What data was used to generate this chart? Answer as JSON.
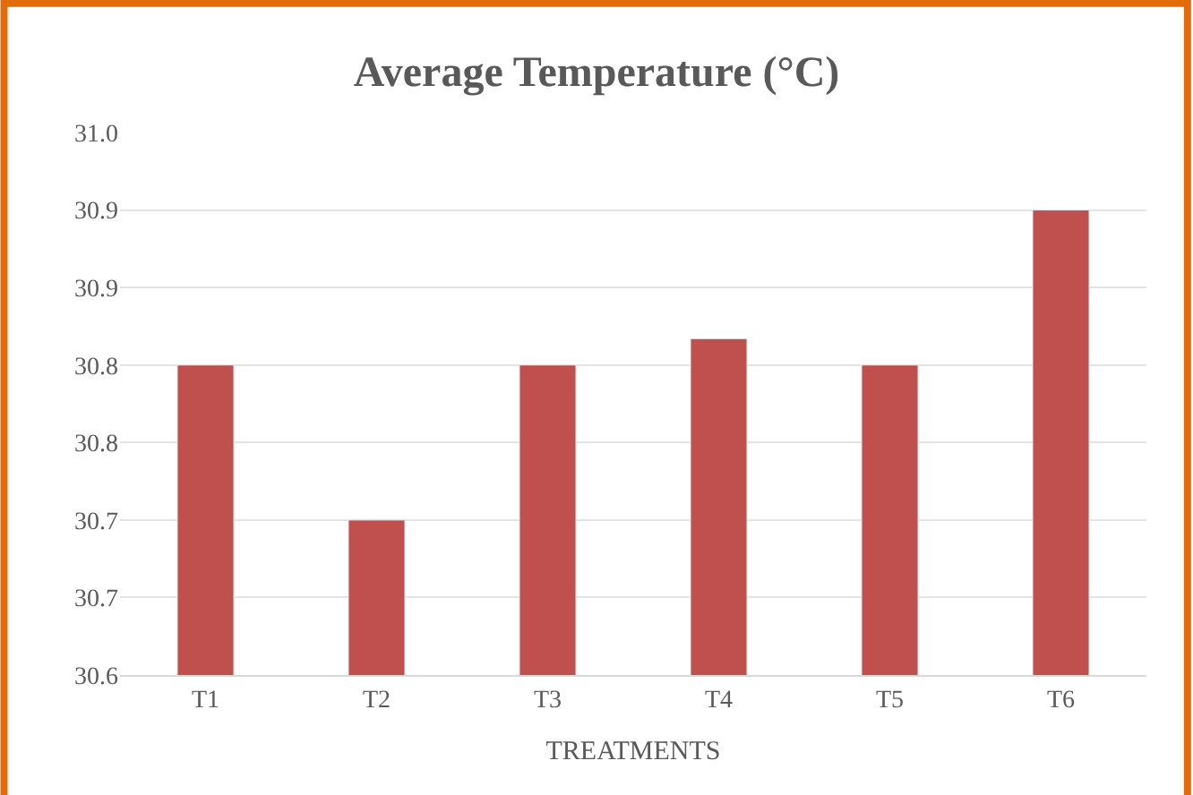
{
  "chart_data": {
    "type": "bar",
    "title": "Average Temperature (°C)",
    "xlabel": "TREATMENTS",
    "categories": [
      "T1",
      "T2",
      "T3",
      "T4",
      "T5",
      "T6"
    ],
    "values": [
      30.8,
      30.7,
      30.8,
      30.817,
      30.8,
      30.9
    ],
    "color": "#c0504d",
    "ylim": [
      30.6,
      30.95
    ],
    "yticks": [
      {
        "value": 30.6,
        "label": "30.6"
      },
      {
        "value": 30.65,
        "label": "30.7"
      },
      {
        "value": 30.7,
        "label": "30.7"
      },
      {
        "value": 30.75,
        "label": "30.8"
      },
      {
        "value": 30.8,
        "label": "30.8"
      },
      {
        "value": 30.85,
        "label": "30.9"
      },
      {
        "value": 30.9,
        "label": "30.9"
      },
      {
        "value": 30.95,
        "label": "31.0"
      }
    ],
    "grid": "y"
  }
}
